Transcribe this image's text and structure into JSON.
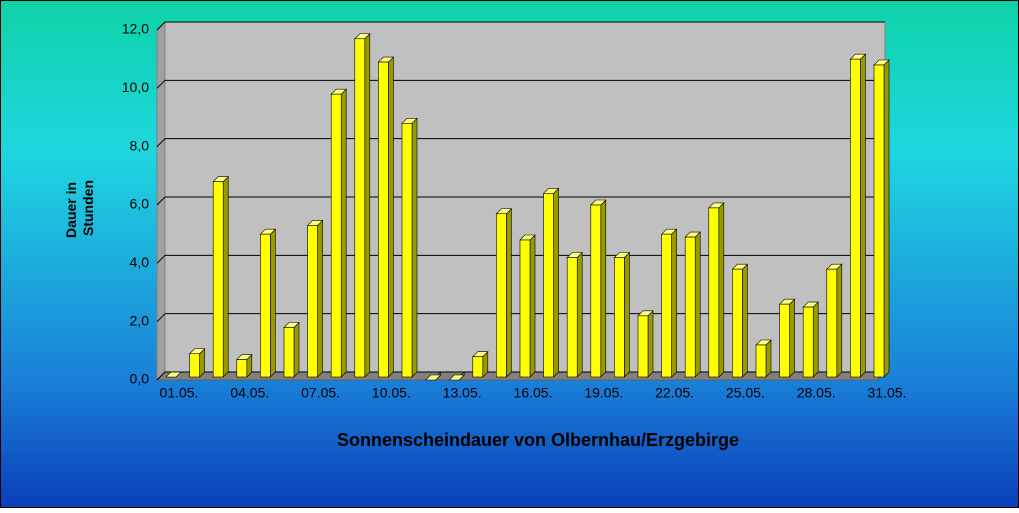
{
  "chart_data": {
    "type": "bar3d",
    "title": "Sonnenscheindauer von Olbernhau/Erzgebirge",
    "y_label": [
      "Dauer in",
      "Stunden"
    ],
    "categories": [
      "01.05.",
      null,
      null,
      "04.05.",
      null,
      null,
      "07.05.",
      null,
      null,
      "10.05.",
      null,
      null,
      "13.05.",
      null,
      null,
      "16.05.",
      null,
      null,
      "19.05.",
      null,
      null,
      "22.05.",
      null,
      null,
      "25.05.",
      null,
      null,
      "28.05.",
      null,
      null,
      "31.05."
    ],
    "values": [
      0.1,
      0.9,
      6.8,
      0.7,
      5.0,
      1.8,
      5.3,
      9.8,
      11.7,
      10.9,
      8.8,
      0,
      0,
      0.8,
      5.7,
      4.8,
      6.4,
      4.2,
      6.0,
      4.2,
      2.2,
      5.0,
      4.9,
      5.9,
      3.8,
      1.2,
      2.6,
      2.5,
      3.8,
      11.0,
      10.8
    ],
    "color": "#ffff00",
    "ylim": [
      0,
      12
    ],
    "yticks": [
      {
        "value": 0,
        "label": "0,0"
      },
      {
        "value": 2,
        "label": "2,0"
      },
      {
        "value": 4,
        "label": "4,0"
      },
      {
        "value": 6,
        "label": "6,0"
      },
      {
        "value": 8,
        "label": "8,0"
      },
      {
        "value": 10,
        "label": "10,0"
      },
      {
        "value": 12,
        "label": "12,0"
      }
    ],
    "grid": true
  }
}
